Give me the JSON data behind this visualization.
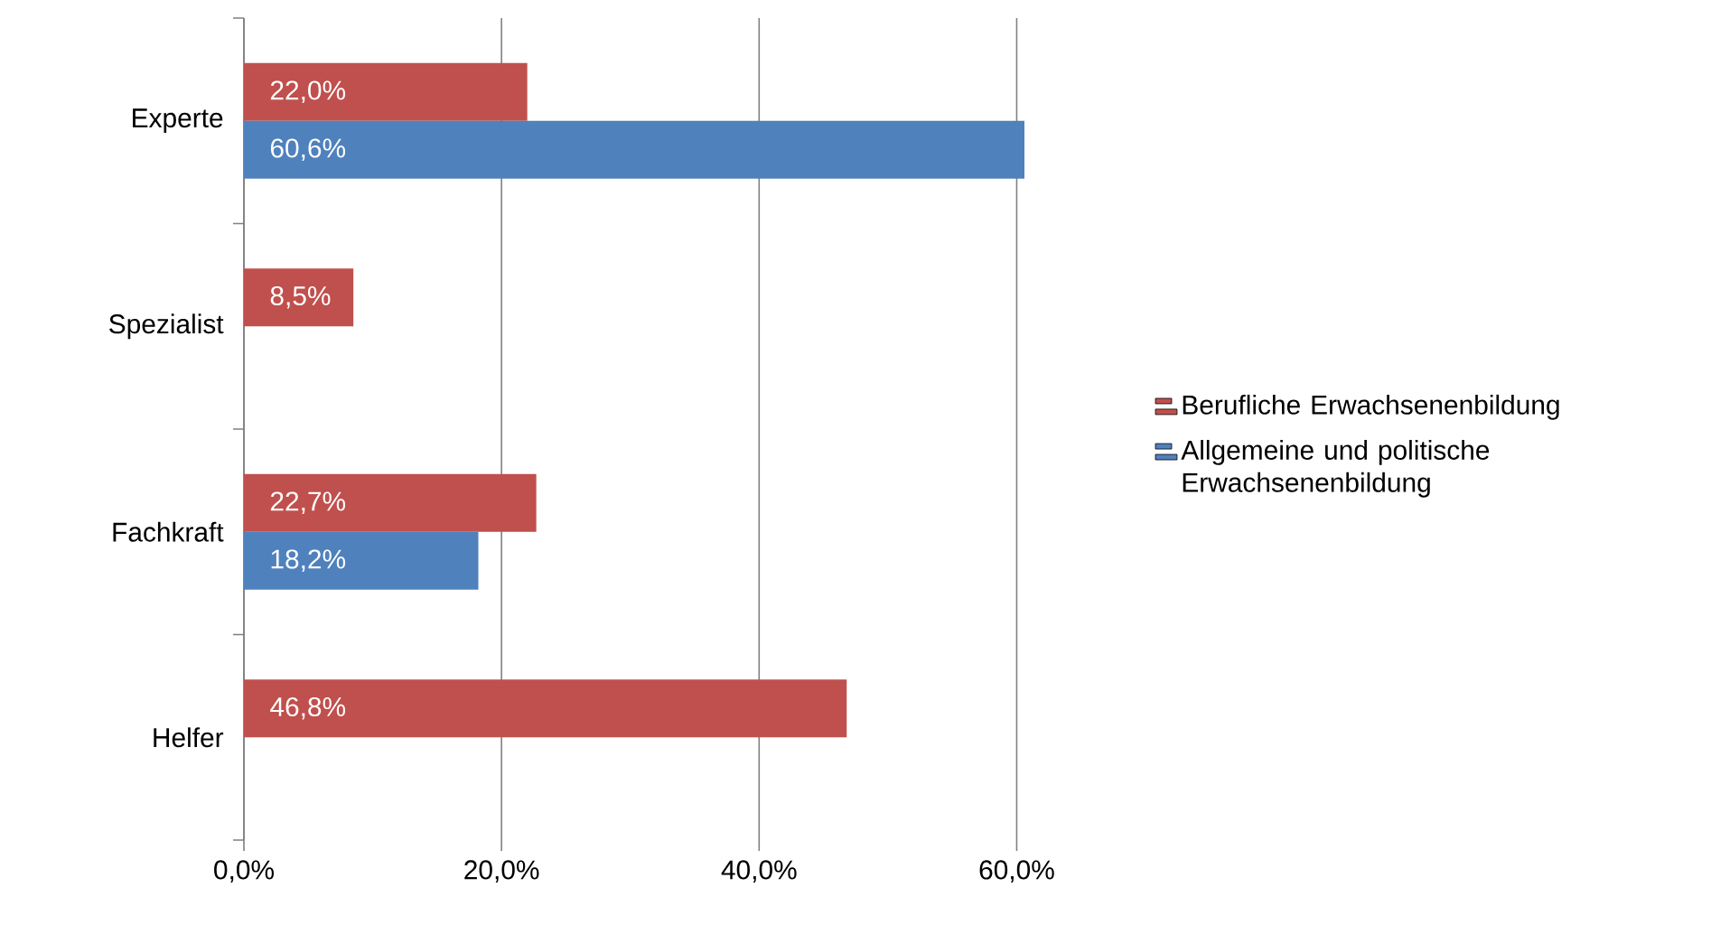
{
  "chart_data": {
    "type": "bar",
    "orientation": "horizontal",
    "categories": [
      "Experte",
      "Spezialist",
      "Fachkraft",
      "Helfer"
    ],
    "series": [
      {
        "name": "Berufliche Erwachsenenbildung",
        "color": "#c0504d",
        "values": [
          22.0,
          8.5,
          22.7,
          46.8
        ],
        "value_labels": [
          "22,0%",
          "8,5%",
          "22,7%",
          "46,8%"
        ]
      },
      {
        "name": "Allgemeine und politische Erwachsenenbildung",
        "color": "#4f81bd",
        "values": [
          60.6,
          null,
          18.2,
          null
        ],
        "value_labels": [
          "60,6%",
          null,
          "18,2%",
          null
        ]
      }
    ],
    "xlim": [
      0,
      60.6
    ],
    "xticks": [
      {
        "value": 0,
        "label": "0,0%"
      },
      {
        "value": 20,
        "label": "20,0%"
      },
      {
        "value": 40,
        "label": "40,0%"
      },
      {
        "value": 60,
        "label": "60,0%"
      }
    ],
    "grid": "x",
    "legend": "right"
  }
}
